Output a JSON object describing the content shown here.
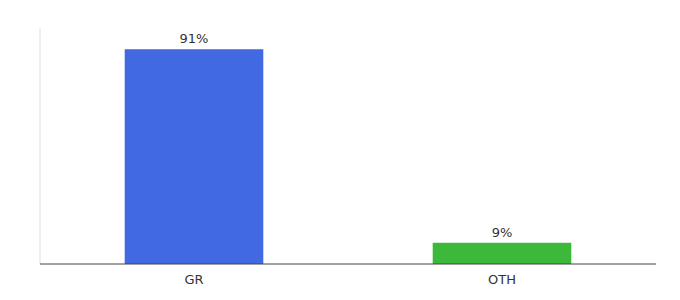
{
  "chart_data": {
    "type": "bar",
    "categories": [
      "GR",
      "OTH"
    ],
    "values": [
      91,
      9
    ],
    "value_labels": [
      "91%",
      "9%"
    ],
    "colors": [
      "#4169e1",
      "#3cb83a"
    ],
    "ylim": [
      0,
      100
    ],
    "data_labels": true,
    "tick_labels": "x",
    "grid": false
  }
}
